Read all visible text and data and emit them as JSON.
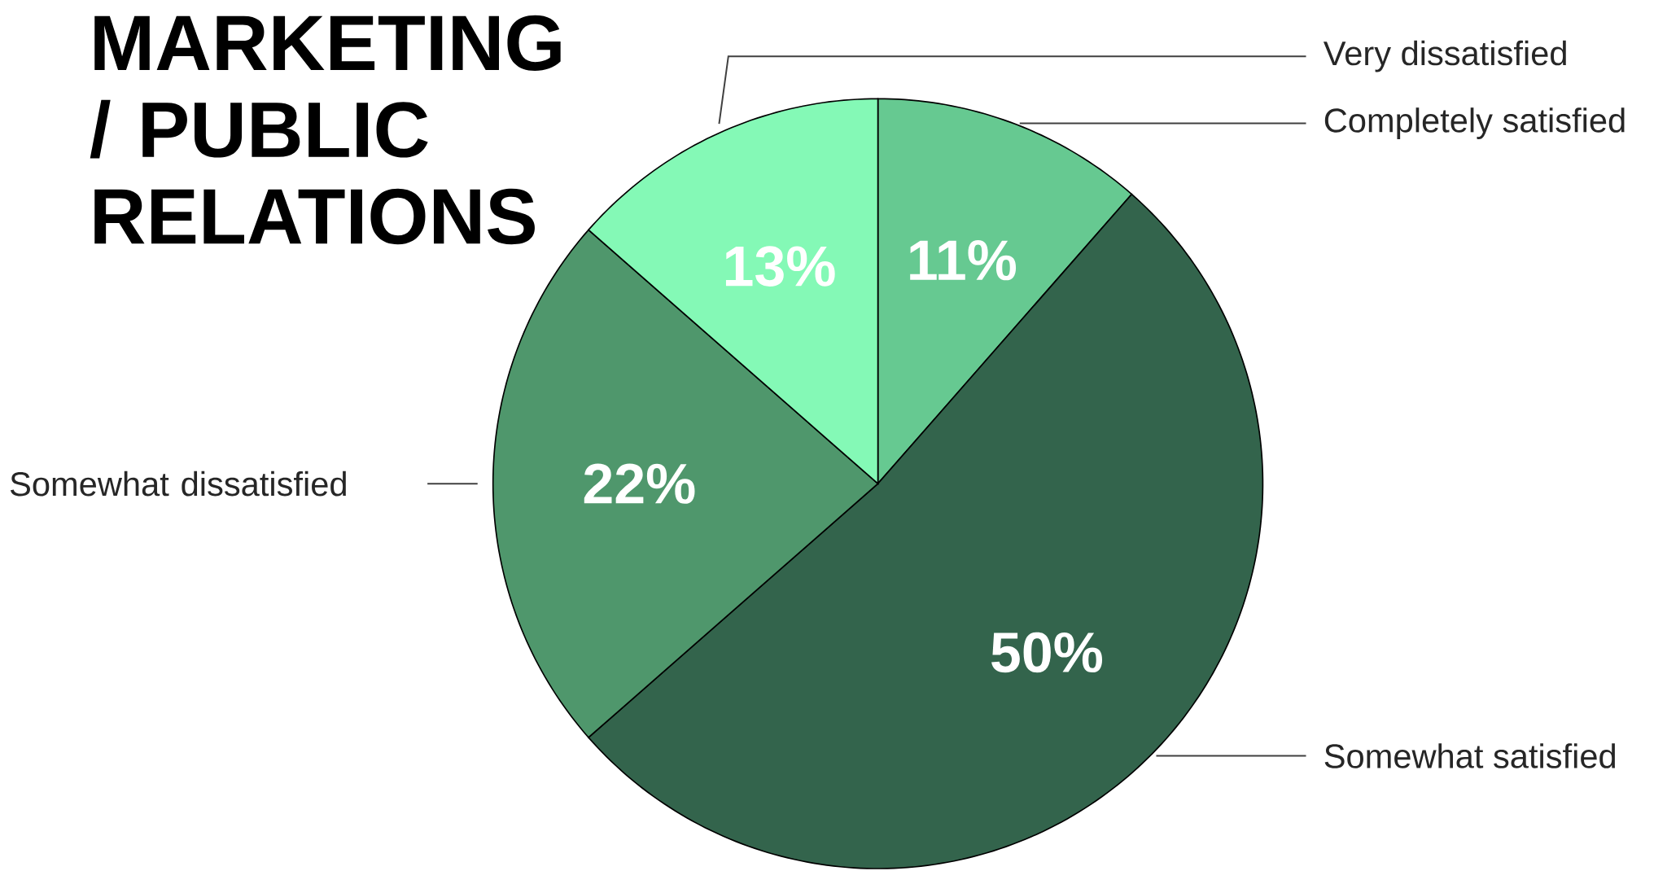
{
  "chart_data": {
    "type": "pie",
    "title": "MARKETING / PUBLIC RELATIONS",
    "categories": [
      "Completely satisfied",
      "Somewhat satisfied",
      "Somewhat dissatisfied",
      "Very dissatisfied"
    ],
    "values": [
      11,
      50,
      22,
      13
    ],
    "value_labels": [
      "11%",
      "50%",
      "22%",
      "13%"
    ],
    "colors": [
      "#66c991",
      "#33644c",
      "#4f976c",
      "#84f9b6"
    ]
  }
}
